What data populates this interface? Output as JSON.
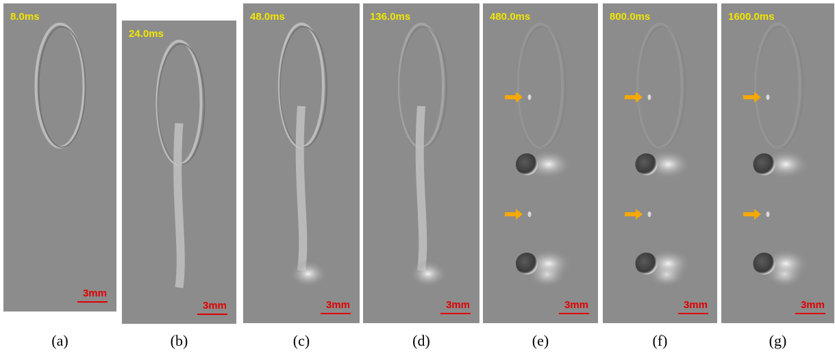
{
  "panels": [
    {
      "time": "8.0ms",
      "scale": "3mm",
      "caption": "(a)"
    },
    {
      "time": "24.0ms",
      "scale": "3mm",
      "caption": "(b)"
    },
    {
      "time": "48.0ms",
      "scale": "3mm",
      "caption": "(c)"
    },
    {
      "time": "136.0ms",
      "scale": "3mm",
      "caption": "(d)"
    },
    {
      "time": "480.0ms",
      "scale": "3mm",
      "caption": "(e)"
    },
    {
      "time": "800.0ms",
      "scale": "3mm",
      "caption": "(f)"
    },
    {
      "time": "1600.0ms",
      "scale": "3mm",
      "caption": "(g)"
    }
  ]
}
